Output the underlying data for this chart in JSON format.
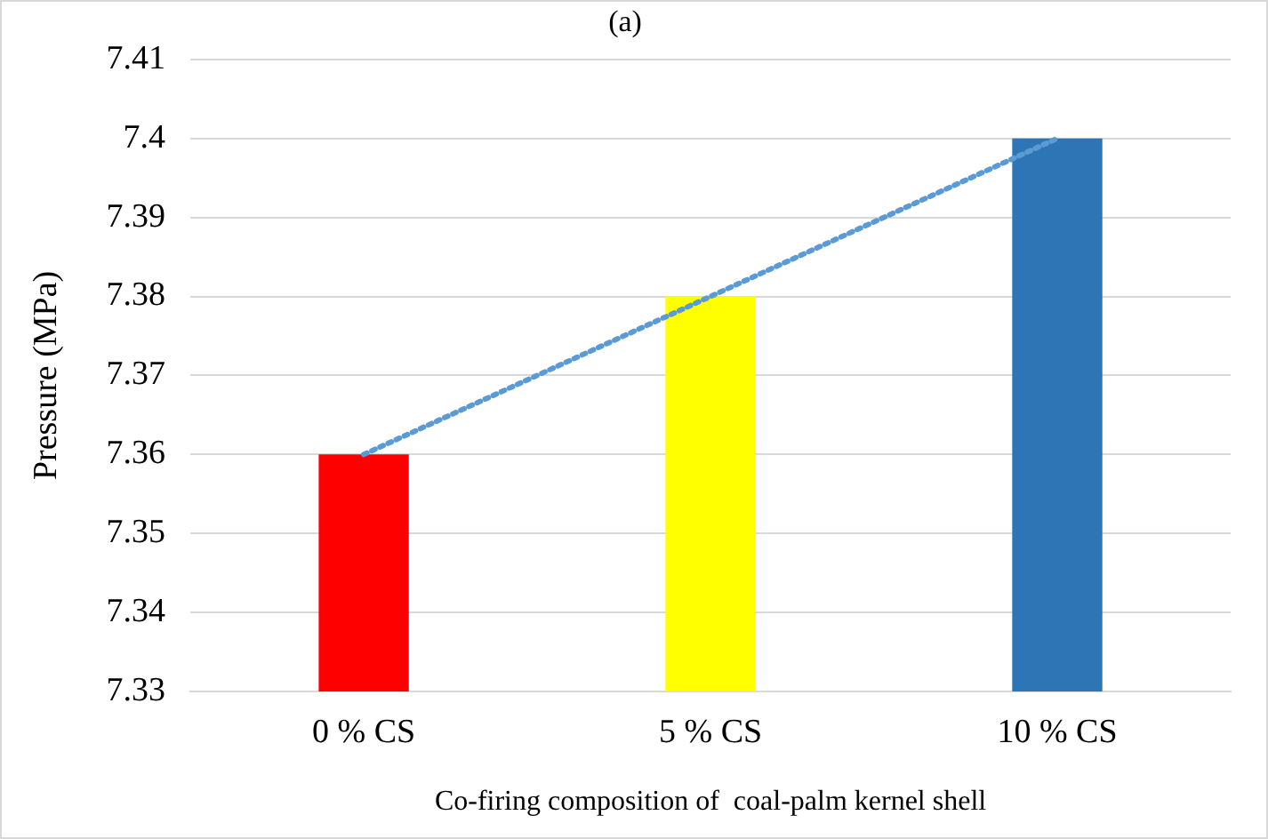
{
  "chart_data": {
    "type": "bar",
    "title": "(a)",
    "xlabel": "Co-firing composition of  coal-palm kernel shell",
    "ylabel": "Pressure (MPa)",
    "categories": [
      "0 % CS",
      "5 % CS",
      "10 % CS"
    ],
    "series": [
      {
        "colors": [
          "#ff0000",
          "#ffff00",
          "#2e75b6"
        ],
        "values": [
          7.36,
          7.38,
          7.4
        ]
      },
      {
        "type": "line",
        "color": "#5b9bd5",
        "values": [
          7.36,
          7.38,
          7.4
        ],
        "line_style": "dotted",
        "marker": "none"
      }
    ],
    "ylim": [
      7.33,
      7.41
    ],
    "yticks": [
      7.33,
      7.34,
      7.35,
      7.36,
      7.37,
      7.38,
      7.39,
      7.4,
      7.41
    ],
    "grid": "y",
    "legend": false
  }
}
